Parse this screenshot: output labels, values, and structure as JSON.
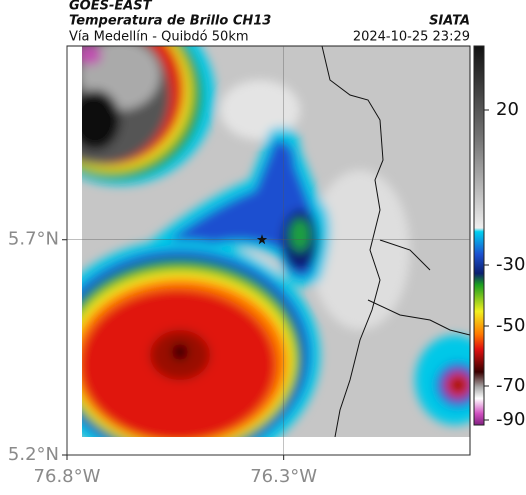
{
  "header": {
    "title": "GOES-EAST",
    "subtitle": "Temperatura de Brillo CH13",
    "caption": "Vía Medellín - Quibdó 50km",
    "source": "SIATA",
    "timestamp": "2024-10-25 23:29"
  },
  "map": {
    "latlim": [
      5.2,
      6.15
    ],
    "lonlim": [
      -76.8,
      -75.87
    ],
    "lat_ticks": [
      {
        "value": 5.7,
        "label": "5.7°N"
      },
      {
        "value": 5.2,
        "label": "5.2°N"
      }
    ],
    "lon_ticks": [
      {
        "value": -76.8,
        "label": "76.8°W"
      },
      {
        "value": -76.3,
        "label": "76.3°W"
      }
    ],
    "station": {
      "lon": -76.35,
      "lat": 5.7
    },
    "colorbar_ticks": [
      20,
      -30,
      -50,
      -70,
      -90
    ]
  }
}
